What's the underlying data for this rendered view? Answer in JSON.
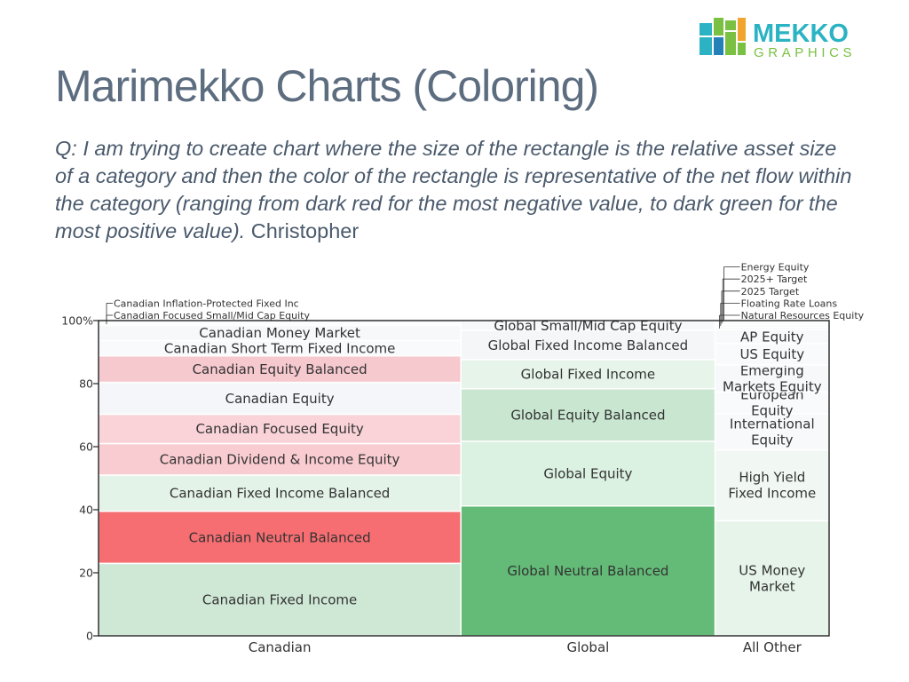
{
  "header": {
    "title": "Marimekko Charts (Coloring)",
    "question": "Q: I am trying to create chart where the size of the rectangle is the relative asset size of a category and then the color of the rectangle is representative of the net flow within the category (ranging from dark red for the most negative value, to dark green for the most positive value).",
    "author": "Christopher"
  },
  "logo": {
    "word": "MEKKO",
    "subword": "GRAPHICS",
    "colors": [
      "#f1a52c",
      "#7ac143",
      "#2bb3c4",
      "#2480b8"
    ],
    "text_color": "#2bb3c4",
    "sub_color": "#7ac143"
  },
  "chart_data": {
    "type": "marimekko",
    "title": "",
    "xlabel": "",
    "ylabel": "",
    "ylim": [
      0,
      100
    ],
    "y_ticks": [
      0,
      20,
      40,
      60,
      80,
      100
    ],
    "y_tick_labels": [
      "0",
      "20",
      "40",
      "60",
      "80",
      "100%"
    ],
    "grid": false,
    "color_scale": "dark red (most negative net flow) to dark green (most positive net flow)",
    "columns": [
      {
        "name": "Canadian",
        "width_pct": 49.6,
        "segments": [
          {
            "label": "Canadian Fixed Income",
            "value": 23,
            "color": "#cfe8d6"
          },
          {
            "label": "Canadian Neutral Balanced",
            "value": 16.5,
            "color": "#f76e72"
          },
          {
            "label": "Canadian Fixed Income Balanced",
            "value": 11.5,
            "color": "#e4f3e8"
          },
          {
            "label": "Canadian Dividend & Income Equity",
            "value": 10,
            "color": "#f9ccd1"
          },
          {
            "label": "Canadian Focused Equity",
            "value": 9.3,
            "color": "#f9d3d8"
          },
          {
            "label": "Canadian Equity",
            "value": 10.1,
            "color": "#f4f6fa"
          },
          {
            "label": "Canadian Equity Balanced",
            "value": 8.4,
            "color": "#f6c9cf"
          },
          {
            "label": "Canadian Short Term Fixed Income",
            "value": 4.9,
            "color": "#f9fafc"
          },
          {
            "label": "Canadian Money Market",
            "value": 4.8,
            "color": "#f7f8fa"
          },
          {
            "label": "Canadian Focused Small/Mid Cap Equity",
            "value": 0.7,
            "color": "#fbfbfc",
            "callout": true
          },
          {
            "label": "Canadian Inflation-Protected Fixed Inc",
            "value": 0.8,
            "color": "#f6f7f9",
            "callout": true
          }
        ]
      },
      {
        "name": "Global",
        "width_pct": 34.8,
        "segments": [
          {
            "label": "Global Neutral Balanced",
            "value": 41.2,
            "color": "#63bb77"
          },
          {
            "label": "Global Equity",
            "value": 20.5,
            "color": "#dbf1e1"
          },
          {
            "label": "Global Equity Balanced",
            "value": 16.7,
            "color": "#c9e7d0"
          },
          {
            "label": "Global Fixed Income",
            "value": 9.2,
            "color": "#e6f4ea"
          },
          {
            "label": "Global Fixed Income Balanced",
            "value": 9.3,
            "color": "#f5f6f8"
          },
          {
            "label": "Global Small/Mid Cap Equity",
            "value": 3.1,
            "color": "#f7f8fa"
          }
        ]
      },
      {
        "name": "All Other",
        "width_pct": 15.6,
        "segments": [
          {
            "label": "US Money Market",
            "value": 36.5,
            "color": "#e6f4ea"
          },
          {
            "label": "High Yield Fixed Income",
            "value": 22.5,
            "color": "#f1f8f3"
          },
          {
            "label": "International Equity",
            "value": 11.5,
            "color": "#f8f9fb"
          },
          {
            "label": "European Equity",
            "value": 6.9,
            "color": "#f9fafb"
          },
          {
            "label": "Emerging Markets Equity",
            "value": 8.5,
            "color": "#f7f8fa"
          },
          {
            "label": "US Equity",
            "value": 6.8,
            "color": "#f9fafb"
          },
          {
            "label": "AP Equity",
            "value": 4.4,
            "color": "#f8f9fa"
          },
          {
            "label": "Natural Resources Equity",
            "value": 0.8,
            "color": "#f7f8f9",
            "callout": true
          },
          {
            "label": "Floating Rate Loans",
            "value": 0.8,
            "color": "#f8f9fa",
            "callout": true
          },
          {
            "label": "2025 Target",
            "value": 0.6,
            "color": "#f7f8f9",
            "callout": true
          },
          {
            "label": "2025+ Target",
            "value": 0.6,
            "color": "#f8f9fa",
            "callout": true
          },
          {
            "label": "Energy Equity",
            "value": 0.6,
            "color": "#f7f8f9",
            "callout": true
          }
        ]
      }
    ]
  }
}
